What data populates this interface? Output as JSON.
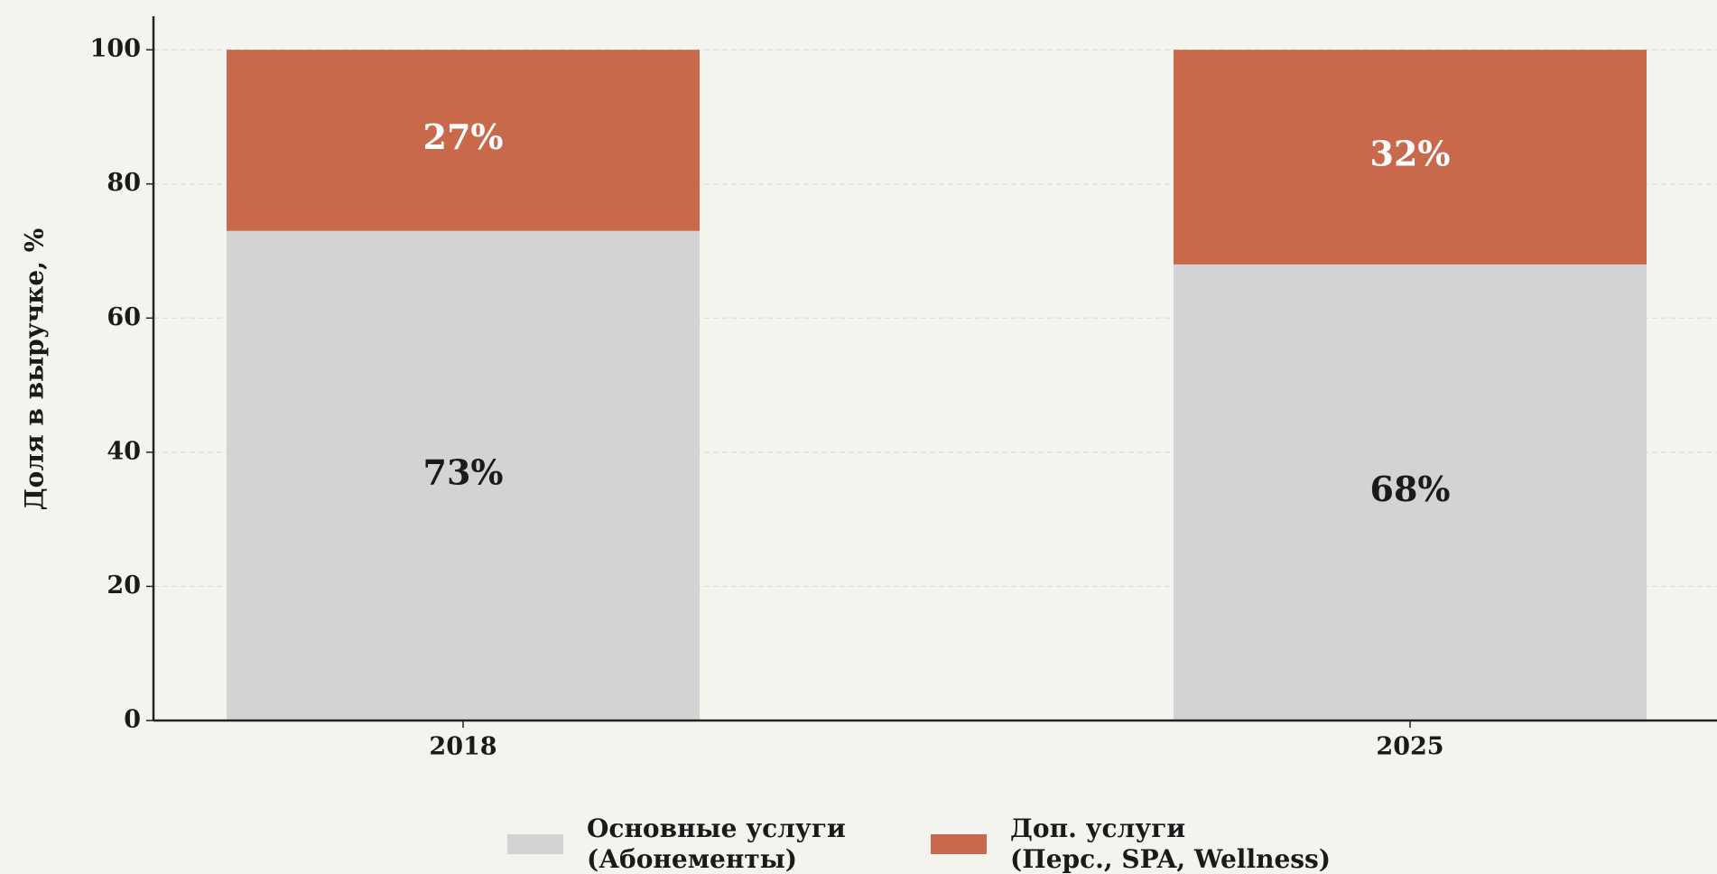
{
  "chart_data": {
    "type": "bar",
    "stacked": true,
    "ylabel": "Доля в выручке, %",
    "categories": [
      "2018",
      "2025"
    ],
    "series": [
      {
        "name": "Основные услуги\n(Абонементы)",
        "color": "#d3d3d3",
        "values": [
          73,
          68
        ],
        "value_labels": [
          "73%",
          "68%"
        ],
        "label_color": "#1a1a1a"
      },
      {
        "name": "Доп. услуги\n(Перс., SPA, Wellness)",
        "color": "#c8694b",
        "values": [
          27,
          32
        ],
        "value_labels": [
          "27%",
          "32%"
        ],
        "label_color": "#ffffff"
      }
    ],
    "ylim": [
      0,
      105
    ],
    "yticks": [
      0,
      20,
      40,
      60,
      80,
      100
    ],
    "grid": true,
    "legend": "bottom"
  }
}
